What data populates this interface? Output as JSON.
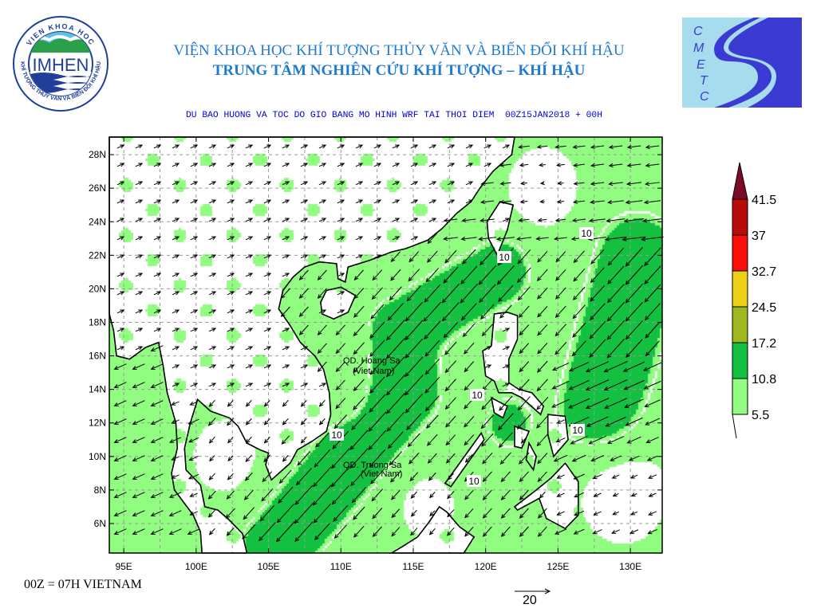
{
  "header": {
    "line1": "VIỆN KHOA HỌC KHÍ TƯỢNG THỦY VĂN VÀ BIẾN ĐỔI KHÍ HẬU",
    "line2": "TRUNG TÂM NGHIÊN CỨU KHÍ TƯỢNG – KHÍ HẬU",
    "subtitle": "DU BAO HUONG VA TOC DO GIO BANG MO HINH WRF TAI THOI DIEM  00Z15JAN2018 + 00H"
  },
  "logos": {
    "imhen": {
      "name": "IMHEN",
      "ring_top": "VIEN KHOA HOC",
      "ring_bottom": "KHÍ TƯỢNG THỦY VĂN VÀ BIẾN ĐỔI KHÍ HẬU"
    },
    "cmetc": {
      "letters": [
        "C",
        "M",
        "E",
        "T",
        "C"
      ]
    }
  },
  "map": {
    "lat_labels": [
      "28N",
      "26N",
      "24N",
      "22N",
      "20N",
      "18N",
      "16N",
      "14N",
      "12N",
      "10N",
      "8N",
      "6N"
    ],
    "lat_values": [
      28,
      26,
      24,
      22,
      20,
      18,
      16,
      14,
      12,
      10,
      8,
      6
    ],
    "lon_labels": [
      "95E",
      "100E",
      "105E",
      "110E",
      "115E",
      "120E",
      "125E",
      "130E"
    ],
    "lon_values": [
      95,
      100,
      105,
      110,
      115,
      120,
      125,
      130
    ],
    "lon_range": [
      94,
      132.2
    ],
    "lat_range": [
      4.24,
      29.05
    ],
    "contour_label": "10",
    "places": [
      {
        "name": "QD. Hoang Sa",
        "sub": "(Viet Nam)"
      },
      {
        "name": "QD. Truong Sa",
        "sub": "(Viet Nam)"
      }
    ]
  },
  "legend": {
    "levels": [
      "41.5",
      "37",
      "32.7",
      "24.5",
      "17.2",
      "10.8",
      "5.5"
    ],
    "colors": [
      "#7a0c28",
      "#b80c08",
      "#f81008",
      "#ecd018",
      "#a0b820",
      "#14c040",
      "#90fc80"
    ]
  },
  "footer": {
    "time_note": "00Z = 07H VIETNAM",
    "ref_vector_label": "20"
  },
  "colors": {
    "title": "#1f7ad0",
    "subtitle": "#0000e0",
    "light_green": "#90fc80",
    "dark_green": "#14c040"
  }
}
